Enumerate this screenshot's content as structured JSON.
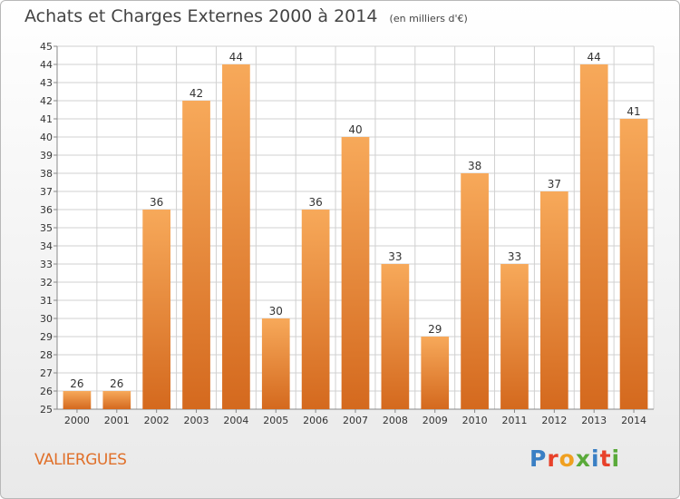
{
  "title": "Achats et Charges Externes 2000 à 2014",
  "subtitle": "(en milliers d'€)",
  "commune": "VALIERGUES",
  "logo": {
    "text": "Proxiti",
    "letters": [
      {
        "ch": "P",
        "color": "#3a7fc4"
      },
      {
        "ch": "r",
        "color": "#e8412a"
      },
      {
        "ch": "o",
        "color": "#f0a020"
      },
      {
        "ch": "x",
        "color": "#5aaa3a"
      },
      {
        "ch": "i",
        "color": "#3a7fc4"
      },
      {
        "ch": "t",
        "color": "#e8412a"
      },
      {
        "ch": "i",
        "color": "#5aaa3a"
      }
    ]
  },
  "colors": {
    "bar_top": "#f7a95a",
    "bar_bottom": "#d4691e",
    "grid": "#d0d0d0",
    "axis_text": "#333333"
  },
  "chart_data": {
    "type": "bar",
    "title": "Achats et Charges Externes 2000 à 2014",
    "subtitle": "(en milliers d'€)",
    "categories": [
      "2000",
      "2001",
      "2002",
      "2003",
      "2004",
      "2005",
      "2006",
      "2007",
      "2008",
      "2009",
      "2010",
      "2011",
      "2012",
      "2013",
      "2014"
    ],
    "values": [
      26,
      26,
      36,
      42,
      44,
      30,
      36,
      40,
      33,
      29,
      38,
      33,
      37,
      44,
      41
    ],
    "ylim": [
      25,
      45
    ],
    "yticks": [
      25,
      26,
      27,
      28,
      29,
      30,
      31,
      32,
      33,
      34,
      35,
      36,
      37,
      38,
      39,
      40,
      41,
      42,
      43,
      44,
      45
    ],
    "grid": true,
    "data_labels": true
  }
}
